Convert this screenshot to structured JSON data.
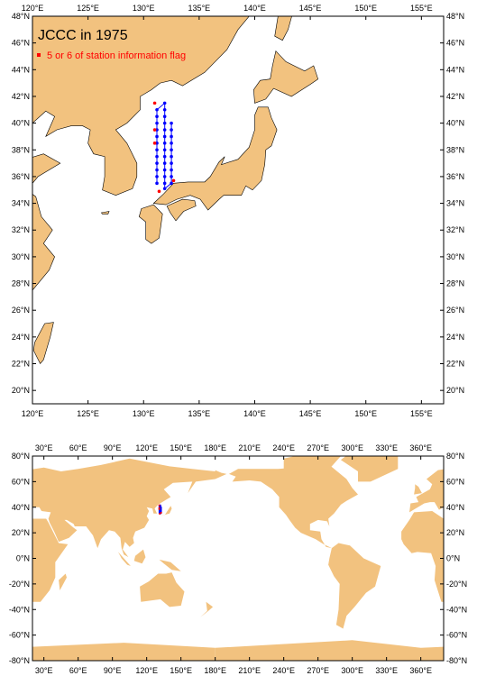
{
  "maps": [
    {
      "title": "JCCC in 1975",
      "legend": "5 or 6 of station information flag",
      "xlim": [
        120,
        157
      ],
      "ylim": [
        19,
        48
      ],
      "xticks": [
        {
          "value": 120,
          "label": "120°E"
        },
        {
          "value": 125,
          "label": "125°E"
        },
        {
          "value": 130,
          "label": "130°E"
        },
        {
          "value": 135,
          "label": "135°E"
        },
        {
          "value": 140,
          "label": "140°E"
        },
        {
          "value": 145,
          "label": "145°E"
        },
        {
          "value": 150,
          "label": "150°E"
        },
        {
          "value": 155,
          "label": "155°E"
        }
      ],
      "yticks": [
        {
          "value": 20,
          "label": "20°N"
        },
        {
          "value": 22,
          "label": "22°N"
        },
        {
          "value": 24,
          "label": "24°N"
        },
        {
          "value": 26,
          "label": "26°N"
        },
        {
          "value": 28,
          "label": "28°N"
        },
        {
          "value": 30,
          "label": "30°N"
        },
        {
          "value": 32,
          "label": "32°N"
        },
        {
          "value": 34,
          "label": "34°N"
        },
        {
          "value": 36,
          "label": "36°N"
        },
        {
          "value": 38,
          "label": "38°N"
        },
        {
          "value": 40,
          "label": "40°N"
        },
        {
          "value": 42,
          "label": "42°N"
        },
        {
          "value": 44,
          "label": "44°N"
        },
        {
          "value": 46,
          "label": "46°N"
        },
        {
          "value": 48,
          "label": "48°N"
        }
      ],
      "land_color": "#f2c27f",
      "stations": {
        "color": "#0000ff",
        "lon": [
          131.2,
          131.2,
          131.2,
          131.2,
          131.2,
          131.2,
          131.2,
          131.2,
          131.2,
          131.2,
          131.2,
          131.2,
          131.9,
          131.9,
          131.9,
          131.9,
          131.9,
          131.9,
          131.9,
          131.9,
          131.9,
          131.9,
          131.9,
          131.9,
          131.9,
          131.9,
          132.5,
          132.5,
          132.5,
          132.5,
          132.5,
          132.5,
          132.5,
          132.5,
          132.5,
          132.5
        ],
        "lat": [
          35.5,
          36,
          36.5,
          37,
          37.5,
          38,
          38.5,
          39,
          39.5,
          40,
          40.5,
          41,
          41.5,
          41,
          40.5,
          40,
          39.5,
          39,
          38.5,
          38,
          37.5,
          37,
          36.5,
          36,
          35.5,
          35.1,
          35.5,
          36,
          36.5,
          37,
          37.5,
          38,
          38.5,
          39,
          39.5,
          40
        ]
      },
      "flagged": {
        "color": "#ff0000",
        "lon": [
          131,
          131,
          131,
          132.7,
          131.4
        ],
        "lat": [
          41.5,
          39.5,
          38.5,
          35.7,
          34.9
        ]
      }
    },
    {
      "xlim": [
        20,
        380
      ],
      "ylim": [
        -80,
        80
      ],
      "xticks": [
        {
          "value": 30,
          "label": "30°E"
        },
        {
          "value": 60,
          "label": "60°E"
        },
        {
          "value": 90,
          "label": "90°E"
        },
        {
          "value": 120,
          "label": "120°E"
        },
        {
          "value": 150,
          "label": "150°E"
        },
        {
          "value": 180,
          "label": "180°E"
        },
        {
          "value": 210,
          "label": "210°E"
        },
        {
          "value": 240,
          "label": "240°E"
        },
        {
          "value": 270,
          "label": "270°E"
        },
        {
          "value": 300,
          "label": "300°E"
        },
        {
          "value": 330,
          "label": "330°E"
        },
        {
          "value": 360,
          "label": "360°E"
        }
      ],
      "yticks": [
        {
          "value": -80,
          "label": "-80°N"
        },
        {
          "value": -60,
          "label": "-60°N"
        },
        {
          "value": -40,
          "label": "-40°N"
        },
        {
          "value": -20,
          "label": "-20°N"
        },
        {
          "value": 0,
          "label": "0°N"
        },
        {
          "value": 20,
          "label": "20°N"
        },
        {
          "value": 40,
          "label": "40°N"
        },
        {
          "value": 60,
          "label": "60°N"
        },
        {
          "value": 80,
          "label": "80°N"
        }
      ],
      "land_color": "#f2c27f"
    }
  ]
}
